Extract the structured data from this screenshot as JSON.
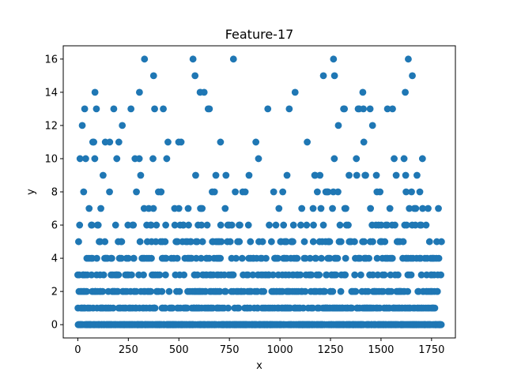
{
  "chart_data": {
    "type": "scatter",
    "title": "Feature-17",
    "xlabel": "x",
    "ylabel": "y",
    "xlim": [
      -72,
      1868
    ],
    "ylim": [
      -0.8,
      16.8
    ],
    "xticks": [
      0,
      250,
      500,
      750,
      1000,
      1250,
      1500,
      1750
    ],
    "yticks": [
      0,
      2,
      4,
      6,
      8,
      10,
      12,
      14,
      16
    ],
    "grid": false,
    "color": "#1f77b4",
    "series": [
      {
        "name": "Feature-17",
        "n_points": 1800,
        "x_range": [
          0,
          1799
        ],
        "y_values_observed": [
          0,
          1,
          2,
          3,
          4,
          5,
          6,
          7,
          8,
          9,
          10,
          11,
          12,
          13,
          14,
          15,
          16
        ],
        "notable_points": [
          {
            "x": 85,
            "y": 14
          },
          {
            "x": 305,
            "y": 14
          },
          {
            "x": 330,
            "y": 16
          },
          {
            "x": 375,
            "y": 15
          },
          {
            "x": 570,
            "y": 16
          },
          {
            "x": 580,
            "y": 15
          },
          {
            "x": 605,
            "y": 14
          },
          {
            "x": 625,
            "y": 14
          },
          {
            "x": 770,
            "y": 16
          },
          {
            "x": 1075,
            "y": 14
          },
          {
            "x": 1215,
            "y": 15
          },
          {
            "x": 1265,
            "y": 16
          },
          {
            "x": 1270,
            "y": 15
          },
          {
            "x": 1410,
            "y": 14
          },
          {
            "x": 1620,
            "y": 14
          },
          {
            "x": 1635,
            "y": 16
          },
          {
            "x": 1655,
            "y": 15
          }
        ]
      }
    ]
  }
}
